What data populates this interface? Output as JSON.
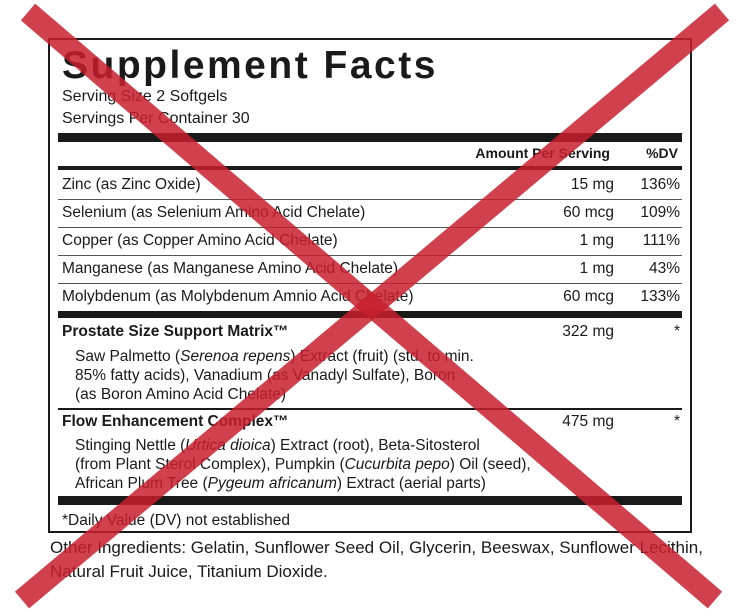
{
  "title": "Supplement Facts",
  "serving_size": "Serving Size 2 Softgels",
  "servings_per_container": "Servings Per Container 30",
  "columns": {
    "amount": "Amount Per Serving",
    "dv": "%DV"
  },
  "nutrients": [
    {
      "name": "Zinc (as Zinc Oxide)",
      "amount": "15 mg",
      "dv": "136%"
    },
    {
      "name": "Selenium (as Selenium Amino Acid Chelate)",
      "amount": "60 mcg",
      "dv": "109%"
    },
    {
      "name": "Copper (as Copper Amino Acid Chelate)",
      "amount": "1 mg",
      "dv": "111%"
    },
    {
      "name": "Manganese (as Manganese Amino Acid Chelate)",
      "amount": "1 mg",
      "dv": "43%"
    },
    {
      "name": "Molybdenum (as Molybdenum Amnio Acid Chelate)",
      "amount": "60 mcg",
      "dv": "133%"
    }
  ],
  "blends": [
    {
      "name": "Prostate Size Support Matrix™",
      "amount": "322 mg",
      "dv": "*",
      "lines": [
        [
          "Saw Palmetto (",
          "Serenoa repens",
          ") Extract (fruit) (std. to min."
        ],
        [
          "85% fatty acids), Vanadium (as Vanadyl Sulfate), Boron",
          "",
          ""
        ],
        [
          "(as Boron Amino Acid Chelate)",
          "",
          ""
        ]
      ]
    },
    {
      "name": "Flow Enhancement Complex™",
      "amount": "475 mg",
      "dv": "*",
      "lines": [
        [
          "Stinging Nettle (",
          "Urtica dioica",
          ") Extract (root), Beta-Sitosterol"
        ],
        [
          "(from Plant Sterol Complex), Pumpkin (",
          "Cucurbita pepo",
          ") Oil (seed),"
        ],
        [
          "African Plum Tree (",
          "Pygeum africanum",
          ") Extract (aerial parts)"
        ]
      ]
    }
  ],
  "footnote": "*Daily Value (DV) not established",
  "other_ingredients": "Other Ingredients: Gelatin, Sunflower Seed Oil, Glycerin, Beeswax, Sunflower Lecithin, Natural Fruit Juice, Titanium Dioxide.",
  "colors": {
    "text": "#1a1a1a",
    "cross": "#c8202e"
  }
}
